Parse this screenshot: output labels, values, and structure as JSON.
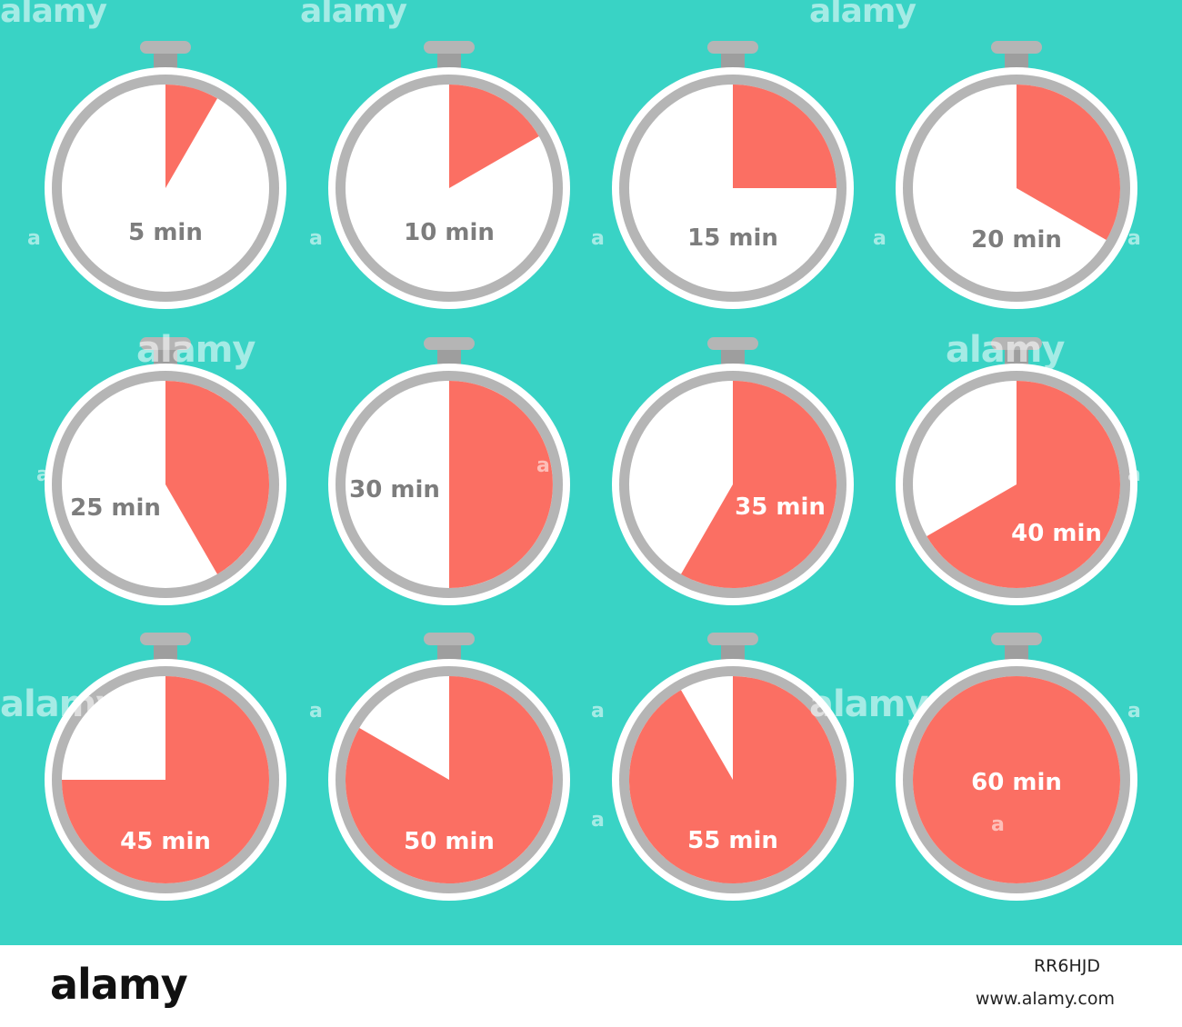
{
  "colors": {
    "background": "#39d3c5",
    "face": "#ffffff",
    "rim": "#b5b5b5",
    "fill": "#fb6f63",
    "label_dark": "#7d7d7d",
    "label_light": "#ffffff"
  },
  "timers": [
    {
      "label": "5 min",
      "minutes": 5
    },
    {
      "label": "10 min",
      "minutes": 10
    },
    {
      "label": "15 min",
      "minutes": 15
    },
    {
      "label": "20 min",
      "minutes": 20
    },
    {
      "label": "25 min",
      "minutes": 25
    },
    {
      "label": "30 min",
      "minutes": 30
    },
    {
      "label": "35 min",
      "minutes": 35
    },
    {
      "label": "40 min",
      "minutes": 40
    },
    {
      "label": "45 min",
      "minutes": 45
    },
    {
      "label": "50 min",
      "minutes": 50
    },
    {
      "label": "55 min",
      "minutes": 55
    },
    {
      "label": "60 min",
      "minutes": 60
    }
  ],
  "watermark": {
    "text": "alamy",
    "small": "a"
  },
  "footer": {
    "logo": "alamy",
    "image_id": "RR6HJD",
    "url": "www.alamy.com"
  }
}
